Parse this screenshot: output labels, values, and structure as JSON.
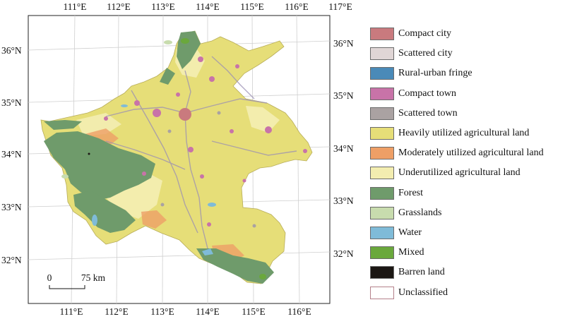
{
  "map": {
    "top_lon_labels": [
      "111°E",
      "112°E",
      "113°E",
      "114°E",
      "115°E",
      "116°E",
      "117°E"
    ],
    "bottom_lon_labels": [
      "111°E",
      "112°E",
      "113°E",
      "114°E",
      "115°E",
      "116°E"
    ],
    "left_lat_labels": [
      "36°N",
      "35°N",
      "34°N",
      "33°N",
      "32°N"
    ],
    "right_lat_labels": [
      "36°N",
      "35°N",
      "34°N",
      "33°N",
      "32°N"
    ],
    "scale_bar": {
      "start_label": "0",
      "end_label": "75 km"
    }
  },
  "legend": {
    "items": [
      {
        "label": "Compact city",
        "color": "#c97a7e"
      },
      {
        "label": "Scattered city",
        "color": "#e0d6d6"
      },
      {
        "label": "Rural-urban fringe",
        "color": "#4a8ab8"
      },
      {
        "label": "Compact town",
        "color": "#c873a8"
      },
      {
        "label": "Scattered town",
        "color": "#aaa2a2"
      },
      {
        "label": "Heavily utilized agricultural land",
        "color": "#e6de78"
      },
      {
        "label": "Moderately utilized agricultural land",
        "color": "#ee9f66"
      },
      {
        "label": "Underutilized agricultural land",
        "color": "#f3edb0"
      },
      {
        "label": "Forest",
        "color": "#6f9b6b"
      },
      {
        "label": "Grasslands",
        "color": "#c8dcae"
      },
      {
        "label": "Water",
        "color": "#7fbbd8"
      },
      {
        "label": "Mixed",
        "color": "#6aa83c"
      },
      {
        "label": "Barren land",
        "color": "#1c1714"
      },
      {
        "label": "Unclassified",
        "color": "#ffffff"
      }
    ]
  }
}
